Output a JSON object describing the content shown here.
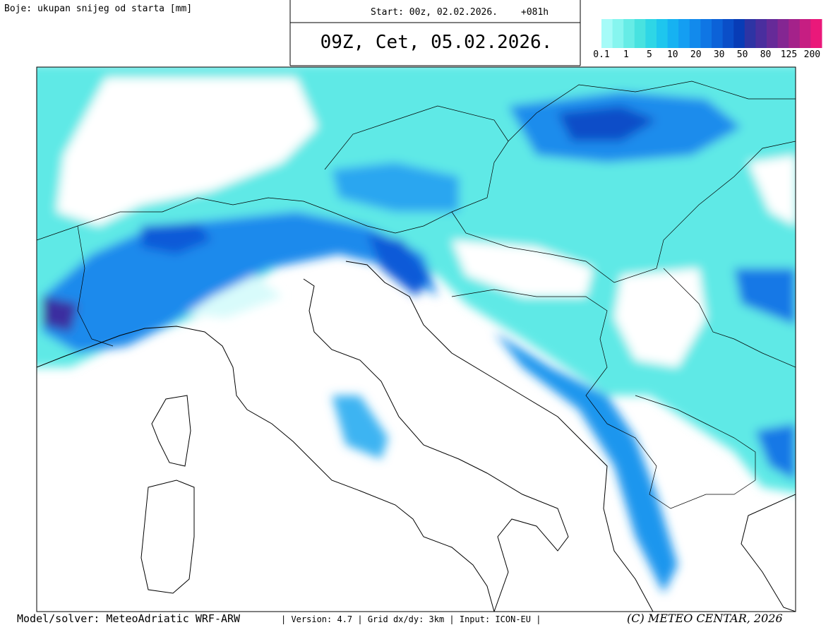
{
  "legend_title": "Boje: ukupan snijeg od starta [mm]",
  "header": {
    "start": "Start: 00z, 02.02.2026.",
    "lead": "+081h",
    "valid": "09Z, Cet, 05.02.2026."
  },
  "colorbar": {
    "labels": [
      "0.1",
      "1",
      "5",
      "10",
      "20",
      "30",
      "50",
      "80",
      "125",
      "200"
    ],
    "colors": [
      "#a6fbf8",
      "#86f5ef",
      "#66ece6",
      "#48e2e0",
      "#2ed6e6",
      "#1ec6ee",
      "#16b2f2",
      "#149ef2",
      "#128aec",
      "#0f76e4",
      "#0c62d8",
      "#0a4ec8",
      "#083cb6",
      "#2e34a4",
      "#4a2e9e",
      "#662a98",
      "#842692",
      "#a4228a",
      "#c61e82",
      "#ea187a"
    ]
  },
  "footer": {
    "model": "Model/solver: MeteoAdriatic WRF-ARW",
    "details": "| Version: 4.7 | Grid dx/dy: 3km | Input: ICON-EU |",
    "copyright": "(C) METEO CENTAR, 2026"
  }
}
